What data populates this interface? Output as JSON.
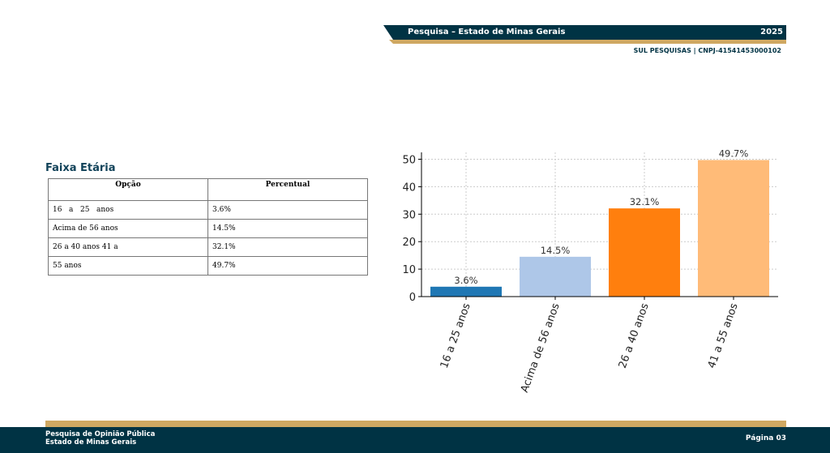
{
  "header": {
    "title": "Pesquisa – Estado de Minas Gerais",
    "year": "2025",
    "subtitle": "SUL PESQUISAS | CNPJ-41541453000102"
  },
  "section": {
    "title": "Faixa Etária"
  },
  "table": {
    "headers": [
      "Opção",
      "Percentual"
    ],
    "rows": [
      [
        "16   a   25   anos",
        "3.6%"
      ],
      [
        "Acima de 56 anos",
        "14.5%"
      ],
      [
        "26 a 40 anos 41 a",
        "32.1%"
      ],
      [
        "55 anos",
        "49.7%"
      ]
    ]
  },
  "chart_data": {
    "type": "bar",
    "categories": [
      "16 a 25 anos",
      "Acima de 56 anos",
      "26 a 40 anos",
      "41 a 55 anos"
    ],
    "values": [
      3.6,
      14.5,
      32.1,
      49.7
    ],
    "data_labels": [
      "3.6%",
      "14.5%",
      "32.1%",
      "49.7%"
    ],
    "colors": [
      "#1f77b4",
      "#aec7e8",
      "#ff7f0e",
      "#ffbb78"
    ],
    "ylim": [
      0,
      52.5
    ],
    "yticks": [
      0,
      10,
      20,
      30,
      40,
      50
    ],
    "grid": true,
    "title": "",
    "xlabel": "",
    "ylabel": ""
  },
  "footer": {
    "line1": "Pesquisa de Opinião Pública",
    "line2": "Estado de Minas Gerais",
    "page": "Página 03"
  }
}
